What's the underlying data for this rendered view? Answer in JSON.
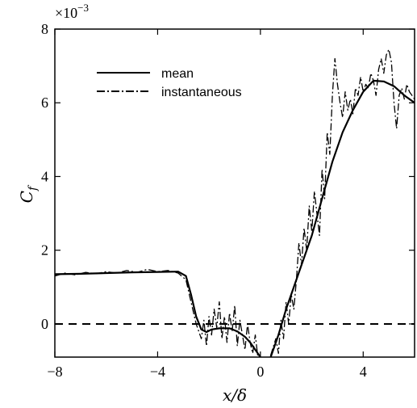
{
  "chart_data": {
    "type": "line",
    "xlabel": "x/δ",
    "ylabel_main": "C",
    "ylabel_sub": "f",
    "multiplier_base": "×10",
    "multiplier_exp": "−3",
    "xlim": [
      -8,
      6
    ],
    "ylim": [
      -0.9,
      8.0
    ],
    "x_ticks": [
      -8,
      -4,
      0,
      4
    ],
    "x_tick_labels": [
      "−8",
      "−4",
      "0",
      "4"
    ],
    "y_ticks": [
      0,
      2,
      4,
      6,
      8
    ],
    "y_tick_labels": [
      "0",
      "2",
      "4",
      "6",
      "8"
    ],
    "reference_line_y": 0,
    "legend_position": "top-left",
    "series": [
      {
        "name": "mean",
        "style": "solid",
        "x": [
          -8,
          -7,
          -6,
          -5,
          -4,
          -3.2,
          -2.9,
          -2.7,
          -2.5,
          -2.3,
          -2.1,
          -1.9,
          -1.6,
          -1.2,
          -0.9,
          -0.6,
          -0.4,
          -0.2,
          0,
          0.2,
          0.4,
          0.7,
          1.0,
          1.3,
          1.6,
          2.0,
          2.4,
          2.8,
          3.2,
          3.6,
          4.0,
          4.4,
          4.8,
          5.2,
          5.6,
          6.0
        ],
        "y": [
          1.35,
          1.36,
          1.38,
          1.4,
          1.41,
          1.42,
          1.3,
          0.8,
          0.2,
          -0.15,
          -0.22,
          -0.15,
          -0.12,
          -0.12,
          -0.2,
          -0.35,
          -0.5,
          -0.7,
          -0.9,
          -1.1,
          -0.9,
          -0.3,
          0.4,
          1.0,
          1.6,
          2.4,
          3.4,
          4.4,
          5.2,
          5.8,
          6.3,
          6.6,
          6.58,
          6.45,
          6.2,
          6.0
        ]
      },
      {
        "name": "instantaneous",
        "style": "dash-dot",
        "x": [
          -8,
          -7.6,
          -7.2,
          -6.8,
          -6.4,
          -6.0,
          -5.6,
          -5.2,
          -4.8,
          -4.4,
          -4.0,
          -3.6,
          -3.2,
          -2.9,
          -2.7,
          -2.5,
          -2.3,
          -2.2,
          -2.1,
          -2.0,
          -1.9,
          -1.8,
          -1.7,
          -1.6,
          -1.5,
          -1.4,
          -1.3,
          -1.2,
          -1.1,
          -1.0,
          -0.9,
          -0.8,
          -0.7,
          -0.6,
          -0.5,
          -0.4,
          -0.3,
          -0.2,
          -0.1,
          0,
          0.2,
          0.4,
          0.6,
          0.7,
          0.8,
          0.9,
          1.0,
          1.1,
          1.2,
          1.3,
          1.4,
          1.5,
          1.6,
          1.7,
          1.8,
          1.9,
          2.0,
          2.1,
          2.2,
          2.3,
          2.4,
          2.5,
          2.6,
          2.7,
          2.8,
          2.9,
          3.0,
          3.1,
          3.2,
          3.3,
          3.4,
          3.5,
          3.6,
          3.7,
          3.8,
          3.9,
          4.0,
          4.1,
          4.2,
          4.3,
          4.4,
          4.5,
          4.6,
          4.7,
          4.8,
          4.9,
          5.0,
          5.1,
          5.2,
          5.3,
          5.4,
          5.5,
          5.6,
          5.7,
          5.8,
          5.9,
          6.0
        ],
        "y": [
          1.3,
          1.38,
          1.33,
          1.4,
          1.36,
          1.42,
          1.38,
          1.45,
          1.4,
          1.48,
          1.42,
          1.45,
          1.38,
          1.2,
          0.6,
          0.0,
          -0.4,
          0.1,
          -0.6,
          0.2,
          -0.3,
          0.4,
          -0.1,
          0.6,
          -0.4,
          0.2,
          -0.5,
          0.3,
          -0.2,
          0.5,
          -0.6,
          0.1,
          -0.3,
          -0.7,
          0.0,
          -0.5,
          -0.8,
          -0.3,
          -0.9,
          -0.9,
          -1.2,
          -0.85,
          -0.4,
          -0.8,
          0.1,
          -0.4,
          0.6,
          0.0,
          0.8,
          0.4,
          1.2,
          2.2,
          1.6,
          2.6,
          2.0,
          3.2,
          2.5,
          3.6,
          3.0,
          2.4,
          4.2,
          3.4,
          5.2,
          4.6,
          6.2,
          7.2,
          6.5,
          6.0,
          5.6,
          6.3,
          5.8,
          6.1,
          5.7,
          6.4,
          6.2,
          6.7,
          6.3,
          6.5,
          6.4,
          6.8,
          6.6,
          6.2,
          6.9,
          7.2,
          6.8,
          7.3,
          7.45,
          7.1,
          6.0,
          5.3,
          6.2,
          6.4,
          6.1,
          6.5,
          6.3,
          6.2,
          6.1
        ]
      }
    ]
  }
}
